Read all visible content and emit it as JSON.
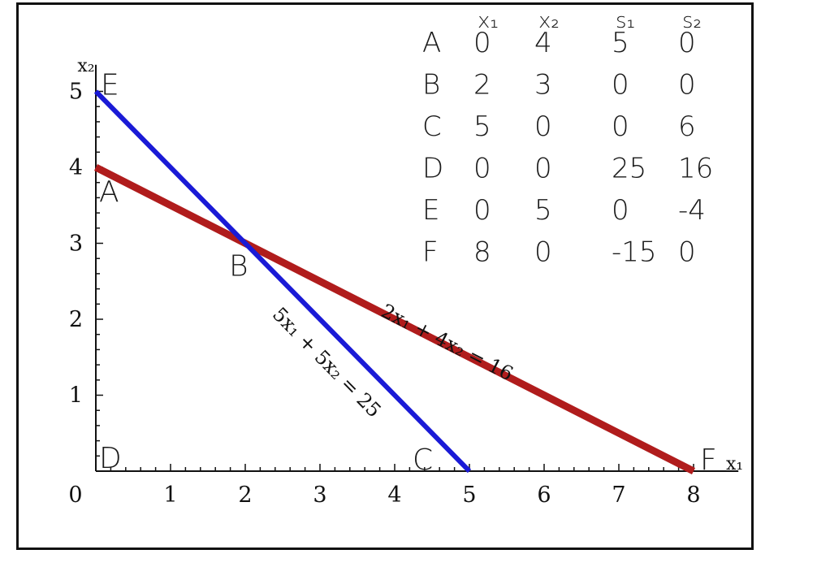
{
  "chart_data": {
    "type": "line",
    "xlabel": "x₁",
    "ylabel": "x₂",
    "xlim": [
      0,
      8.6
    ],
    "ylim": [
      0,
      5.35
    ],
    "x_ticks": [
      "0",
      "1",
      "2",
      "3",
      "4",
      "5",
      "6",
      "7",
      "8"
    ],
    "y_ticks": [
      "1",
      "2",
      "3",
      "4",
      "5"
    ],
    "grid": false,
    "series": [
      {
        "name": "2x₁ + 4x₂ = 16",
        "color": "#b01c1c",
        "points": [
          [
            0,
            4
          ],
          [
            8,
            0
          ]
        ]
      },
      {
        "name": "5x₁ + 5x₂ = 25",
        "color": "#1a1ad6",
        "points": [
          [
            0,
            5
          ],
          [
            5,
            0
          ]
        ]
      }
    ],
    "points": [
      {
        "label": "A",
        "x": 0,
        "y": 4
      },
      {
        "label": "B",
        "x": 2,
        "y": 3
      },
      {
        "label": "C",
        "x": 5,
        "y": 0
      },
      {
        "label": "D",
        "x": 0,
        "y": 0
      },
      {
        "label": "E",
        "x": 0,
        "y": 5
      },
      {
        "label": "F",
        "x": 8,
        "y": 0
      }
    ]
  },
  "table": {
    "headers": [
      "",
      "x₁",
      "x₂",
      "s₁",
      "s₂"
    ],
    "rows": [
      [
        "A",
        "0",
        "4",
        "5",
        "0"
      ],
      [
        "B",
        "2",
        "3",
        "0",
        "0"
      ],
      [
        "C",
        "5",
        "0",
        "0",
        "6"
      ],
      [
        "D",
        "0",
        "0",
        "25",
        "16"
      ],
      [
        "E",
        "0",
        "5",
        "0",
        "-4"
      ],
      [
        "F",
        "8",
        "0",
        "-15",
        "0"
      ]
    ]
  }
}
